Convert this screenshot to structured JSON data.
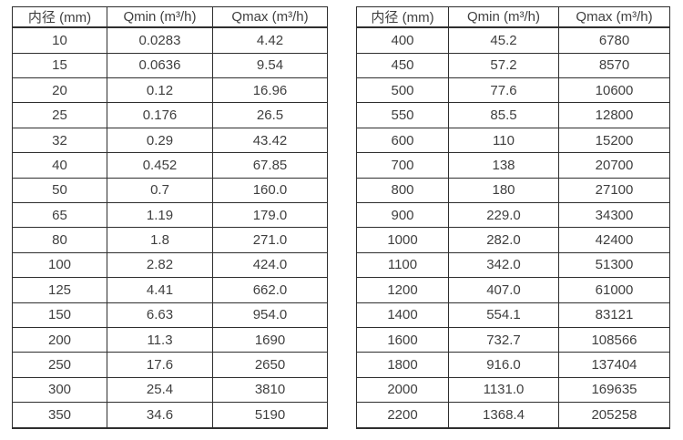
{
  "page": {
    "background_color": "#ffffff",
    "text_color": "#3f3f3f",
    "border_color": "#2e2e2e"
  },
  "table_left": {
    "title": "flow-rate-spec-table-small-diameters",
    "headers": [
      "内径 (mm)",
      "Qmin (m³/h)",
      "Qmax (m³/h)"
    ],
    "rows": [
      [
        "10",
        "0.0283",
        "4.42"
      ],
      [
        "15",
        "0.0636",
        "9.54"
      ],
      [
        "20",
        "0.12",
        "16.96"
      ],
      [
        "25",
        "0.176",
        "26.5"
      ],
      [
        "32",
        "0.29",
        "43.42"
      ],
      [
        "40",
        "0.452",
        "67.85"
      ],
      [
        "50",
        "0.7",
        "160.0"
      ],
      [
        "65",
        "1.19",
        "179.0"
      ],
      [
        "80",
        "1.8",
        "271.0"
      ],
      [
        "100",
        "2.82",
        "424.0"
      ],
      [
        "125",
        "4.41",
        "662.0"
      ],
      [
        "150",
        "6.63",
        "954.0"
      ],
      [
        "200",
        "11.3",
        "1690"
      ],
      [
        "250",
        "17.6",
        "2650"
      ],
      [
        "300",
        "25.4",
        "3810"
      ],
      [
        "350",
        "34.6",
        "5190"
      ]
    ]
  },
  "table_right": {
    "title": "flow-rate-spec-table-large-diameters",
    "headers": [
      "内径 (mm)",
      "Qmin (m³/h)",
      "Qmax (m³/h)"
    ],
    "rows": [
      [
        "400",
        "45.2",
        "6780"
      ],
      [
        "450",
        "57.2",
        "8570"
      ],
      [
        "500",
        "77.6",
        "10600"
      ],
      [
        "550",
        "85.5",
        "12800"
      ],
      [
        "600",
        "110",
        "15200"
      ],
      [
        "700",
        "138",
        "20700"
      ],
      [
        "800",
        "180",
        "27100"
      ],
      [
        "900",
        "229.0",
        "34300"
      ],
      [
        "1000",
        "282.0",
        "42400"
      ],
      [
        "1100",
        "342.0",
        "51300"
      ],
      [
        "1200",
        "407.0",
        "61000"
      ],
      [
        "1400",
        "554.1",
        "83121"
      ],
      [
        "1600",
        "732.7",
        "108566"
      ],
      [
        "1800",
        "916.0",
        "137404"
      ],
      [
        "2000",
        "1131.0",
        "169635"
      ],
      [
        "2200",
        "1368.4",
        "205258"
      ]
    ]
  }
}
